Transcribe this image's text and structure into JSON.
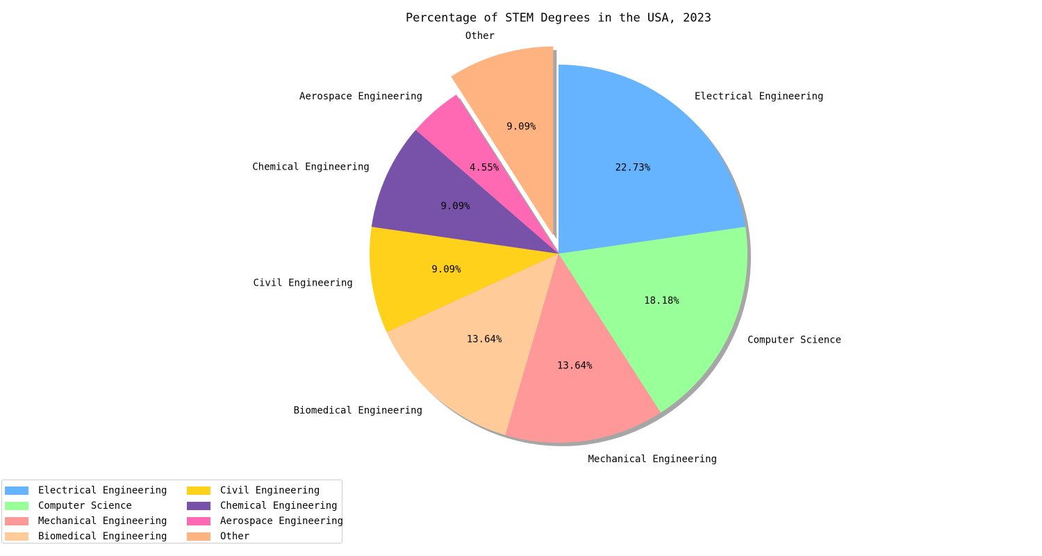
{
  "chart_data": {
    "type": "pie",
    "title": "Percentage of STEM Degrees in the USA, 2023",
    "categories": [
      "Electrical Engineering",
      "Computer Science",
      "Mechanical Engineering",
      "Biomedical Engineering",
      "Civil Engineering",
      "Chemical Engineering",
      "Aerospace Engineering",
      "Other"
    ],
    "values": [
      22.73,
      18.18,
      13.64,
      13.64,
      9.09,
      9.09,
      4.55,
      9.09
    ],
    "value_labels": [
      "22.73%",
      "18.18%",
      "13.64%",
      "13.64%",
      "9.09%",
      "9.09%",
      "4.55%",
      "9.09%"
    ],
    "colors": [
      "#66b3ff",
      "#99ff99",
      "#ff9999",
      "#ffcc99",
      "#ffd11a",
      "#7851a9",
      "#ff69b4",
      "#ffb380"
    ],
    "exploded": "Other",
    "start_angle_deg": 90,
    "direction": "clockwise",
    "shadow": true,
    "legend_position": "bottom-left",
    "legend_columns": 2
  }
}
